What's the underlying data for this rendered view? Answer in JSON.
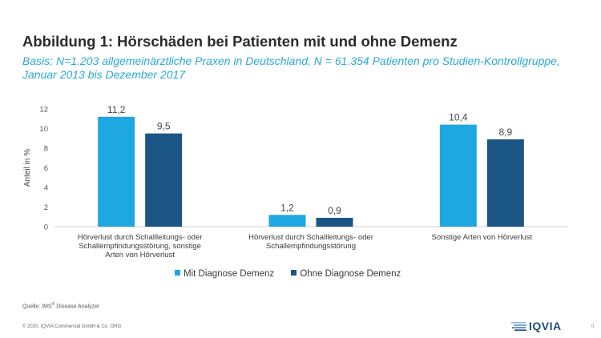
{
  "header": {
    "title": "Abbildung 1: Hörschäden bei Patienten mit und ohne Demenz",
    "subtitle": "Basis: N=1.203 allgemeinärztliche Praxen in Deutschland, N = 61.354 Patienten pro Studien-Kontrollgruppe, Januar 2013 bis Dezember 2017"
  },
  "chart_data": {
    "type": "bar",
    "ylabel": "Anteil  in %",
    "ylim": [
      0,
      12
    ],
    "yticks": [
      0,
      2,
      4,
      6,
      8,
      10,
      12
    ],
    "grid": false,
    "legend_position": "bottom",
    "categories": [
      [
        "Hörverlust durch Schallleitungs- oder",
        "Schallempfindungsstörung, sonstige",
        "Arten von Hörverlust"
      ],
      [
        "Hörverlust durch Schallleitungs- oder",
        "Schallempfindungsstörung"
      ],
      [
        "Sonstige Arten von Hörverlust"
      ]
    ],
    "series": [
      {
        "name": "Mit Diagnose Demenz",
        "color": "#1ea7e1",
        "values": [
          11.2,
          1.2,
          10.4
        ],
        "labels": [
          "11,2",
          "1,2",
          "10,4"
        ]
      },
      {
        "name": "Ohne Diagnose Demenz",
        "color": "#1a5585",
        "values": [
          9.5,
          0.9,
          8.9
        ],
        "labels": [
          "9,5",
          "0,9",
          "8,9"
        ]
      }
    ]
  },
  "footer": {
    "source_prefix": "Quelle: IMS",
    "source_sup": "®",
    "source_suffix": " Disease Analyzer",
    "copyright": "© 2020, IQVIA Commercial GmbH & Co. OHG",
    "logo_text": "IQVIA",
    "page_number": "0",
    "logo_color": "#1e4d7b"
  }
}
